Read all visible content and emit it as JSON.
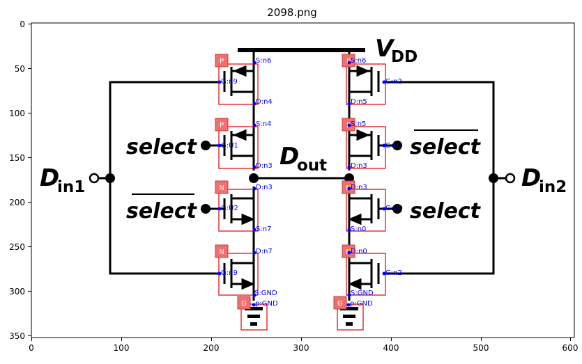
{
  "figure": {
    "title": "2098.png"
  },
  "axes": {
    "x_ticks": [
      "0",
      "100",
      "200",
      "300",
      "400",
      "500",
      "600"
    ],
    "y_ticks": [
      "0",
      "50",
      "100",
      "150",
      "200",
      "250",
      "300",
      "350"
    ]
  },
  "circuit_text": {
    "vdd_main": "V",
    "vdd_sub": "DD",
    "dout_main": "D",
    "dout_sub": "out",
    "din1_main": "D",
    "din1_sub": "in1",
    "din2_main": "D",
    "din2_sub": "in2",
    "select_top_left": "select",
    "select_bottom_left": "select",
    "select_top_right": "select",
    "select_bottom_right": "select"
  },
  "component_tags": [
    "P",
    "P",
    "N",
    "N",
    "P",
    "P",
    "N",
    "N",
    "G",
    "G"
  ],
  "annotations": {
    "left": [
      "S:n6",
      "G:n9",
      "D:n4",
      "S:n4",
      "G:U1",
      "D:n3",
      "D:n3",
      "G:U2",
      "S:n7",
      "D:n7",
      "G:n9",
      "S:GND",
      "p:GND"
    ],
    "right": [
      "S:n6",
      "G:n2",
      "D:n5",
      "S:n5",
      "G:U3",
      "D:n3",
      "D:n3",
      "G:U0",
      "S:n0",
      "D:n0",
      "G:n2",
      "S:GND",
      "p:GND"
    ]
  },
  "colors": {
    "annotation": "#0000ff",
    "box": "#e00000",
    "tag_fill": "#f07070",
    "wire": "#000000"
  }
}
